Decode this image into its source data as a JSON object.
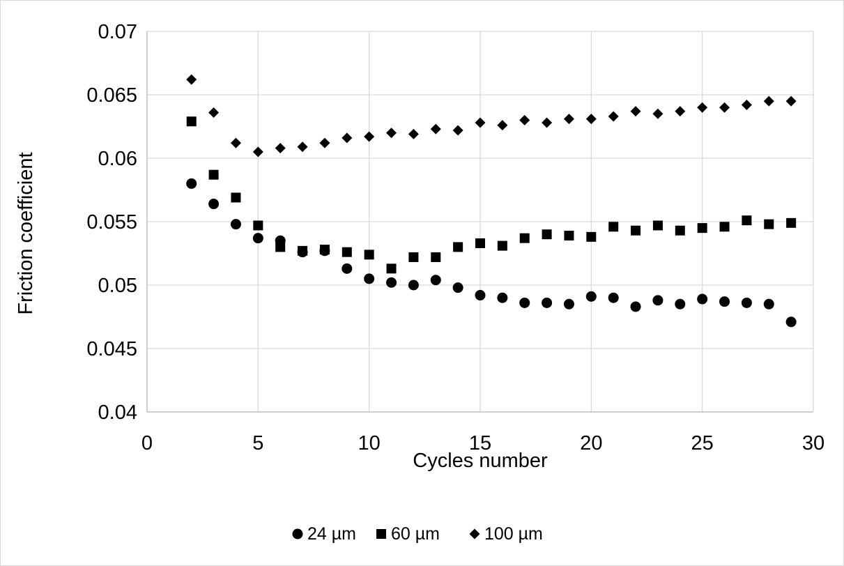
{
  "chart_data": {
    "type": "scatter",
    "title": "",
    "xlabel": "Cycles number",
    "ylabel": "Friction coefficient",
    "xlim": [
      0,
      30
    ],
    "ylim": [
      0.04,
      0.07
    ],
    "x_ticks": [
      0,
      5,
      10,
      15,
      20,
      25,
      30
    ],
    "y_ticks": [
      0.04,
      0.045,
      0.05,
      0.055,
      0.06,
      0.065,
      0.07
    ],
    "x_tick_labels": [
      "0",
      "5",
      "10",
      "15",
      "20",
      "25",
      "30"
    ],
    "y_tick_labels": [
      "0.04",
      "0.045",
      "0.05",
      "0.055",
      "0.06",
      "0.065",
      "0.07"
    ],
    "grid": true,
    "legend_position": "bottom",
    "colors": {
      "marker": "#000000",
      "grid": "#d9d9d9",
      "axis": "#bfbfbf",
      "frame": "#d9d9d9"
    },
    "x": [
      2,
      3,
      4,
      5,
      6,
      7,
      8,
      9,
      10,
      11,
      12,
      13,
      14,
      15,
      16,
      17,
      18,
      19,
      20,
      21,
      22,
      23,
      24,
      25,
      26,
      27,
      28,
      29
    ],
    "series": [
      {
        "name": "24 µm",
        "marker": "circle",
        "values": [
          0.058,
          0.0564,
          0.0548,
          0.0537,
          0.0535,
          0.0526,
          0.0527,
          0.0513,
          0.0505,
          0.0502,
          0.05,
          0.0504,
          0.0498,
          0.0492,
          0.049,
          0.0486,
          0.0486,
          0.0485,
          0.0491,
          0.049,
          0.0483,
          0.0488,
          0.0485,
          0.0489,
          0.0487,
          0.0486,
          0.0485,
          0.0471
        ]
      },
      {
        "name": "60 µm",
        "marker": "square",
        "values": [
          0.0629,
          0.0587,
          0.0569,
          0.0547,
          0.053,
          0.0527,
          0.0528,
          0.0526,
          0.0524,
          0.0513,
          0.0522,
          0.0522,
          0.053,
          0.0533,
          0.0531,
          0.0537,
          0.054,
          0.0539,
          0.0538,
          0.0546,
          0.0543,
          0.0547,
          0.0543,
          0.0545,
          0.0546,
          0.0551,
          0.0548,
          0.0549
        ]
      },
      {
        "name": "100 µm",
        "marker": "diamond",
        "values": [
          0.0662,
          0.0636,
          0.0612,
          0.0605,
          0.0608,
          0.0609,
          0.0612,
          0.0616,
          0.0617,
          0.062,
          0.0619,
          0.0623,
          0.0622,
          0.0628,
          0.0626,
          0.063,
          0.0628,
          0.0631,
          0.0631,
          0.0633,
          0.0637,
          0.0635,
          0.0637,
          0.064,
          0.064,
          0.0642,
          0.0645,
          0.0645
        ]
      }
    ]
  }
}
